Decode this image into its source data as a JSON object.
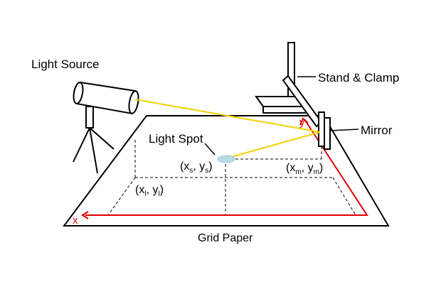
{
  "labels": {
    "light_source": "Light Source",
    "stand_clamp": "Stand & Clamp",
    "mirror": "Mirror",
    "light_spot": "Light Spot",
    "grid_paper": "Grid Paper"
  },
  "points": {
    "spot": {
      "open": "(x",
      "sub1": "s",
      "mid": ", y",
      "sub2": "s",
      "close": ")"
    },
    "mirror": {
      "open": "(x",
      "sub1": "m",
      "mid": ", y",
      "sub2": "m",
      "close": ")"
    },
    "light": {
      "open": "(x",
      "sub1": "l",
      "mid": ", y",
      "sub2": "l",
      "close": ")"
    }
  },
  "axes": {
    "x": "x",
    "y": "y"
  },
  "colors": {
    "beam": "#f5d000",
    "axis": "#e00000",
    "spot": "#b7dde9",
    "outline": "#000000"
  }
}
